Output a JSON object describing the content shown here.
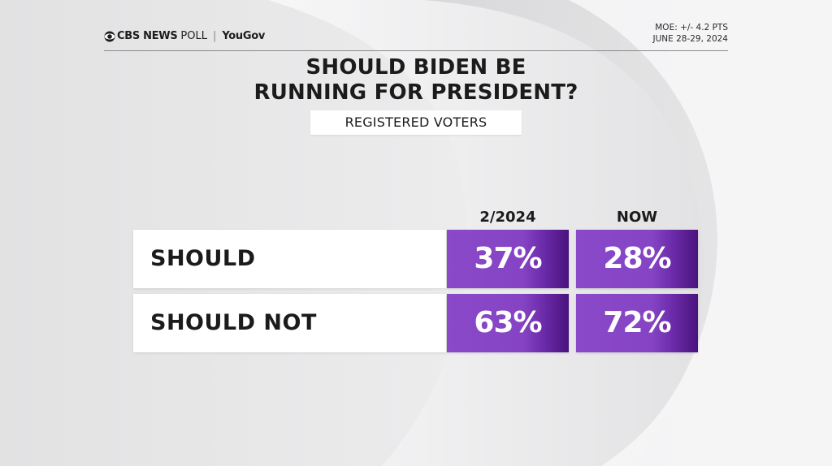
{
  "header": {
    "brand_cbs": "CBS NEWS",
    "brand_poll": "POLL",
    "brand_separator": "|",
    "brand_partner": "YouGov",
    "moe": "MOE: +/- 4.2 PTS",
    "dates": "JUNE 28-29, 2024"
  },
  "chart_data": {
    "type": "table",
    "title_lines": [
      "SHOULD BIDEN BE",
      "RUNNING FOR PRESIDENT?"
    ],
    "subtitle": "REGISTERED VOTERS",
    "columns": [
      "2/2024",
      "NOW"
    ],
    "rows": [
      {
        "label": "SHOULD",
        "values": [
          37,
          28
        ],
        "display": [
          "37%",
          "28%"
        ]
      },
      {
        "label": "SHOULD NOT",
        "values": [
          63,
          72
        ],
        "display": [
          "63%",
          "72%"
        ]
      }
    ],
    "unit": "%"
  },
  "colors": {
    "cell_purple": "#8a49c8",
    "cell_purple_dark": "#4a137d",
    "background": "#e9e9ea",
    "text": "#1b1b1b"
  },
  "icons": {
    "brand_logo": "cbs-eye-icon"
  }
}
